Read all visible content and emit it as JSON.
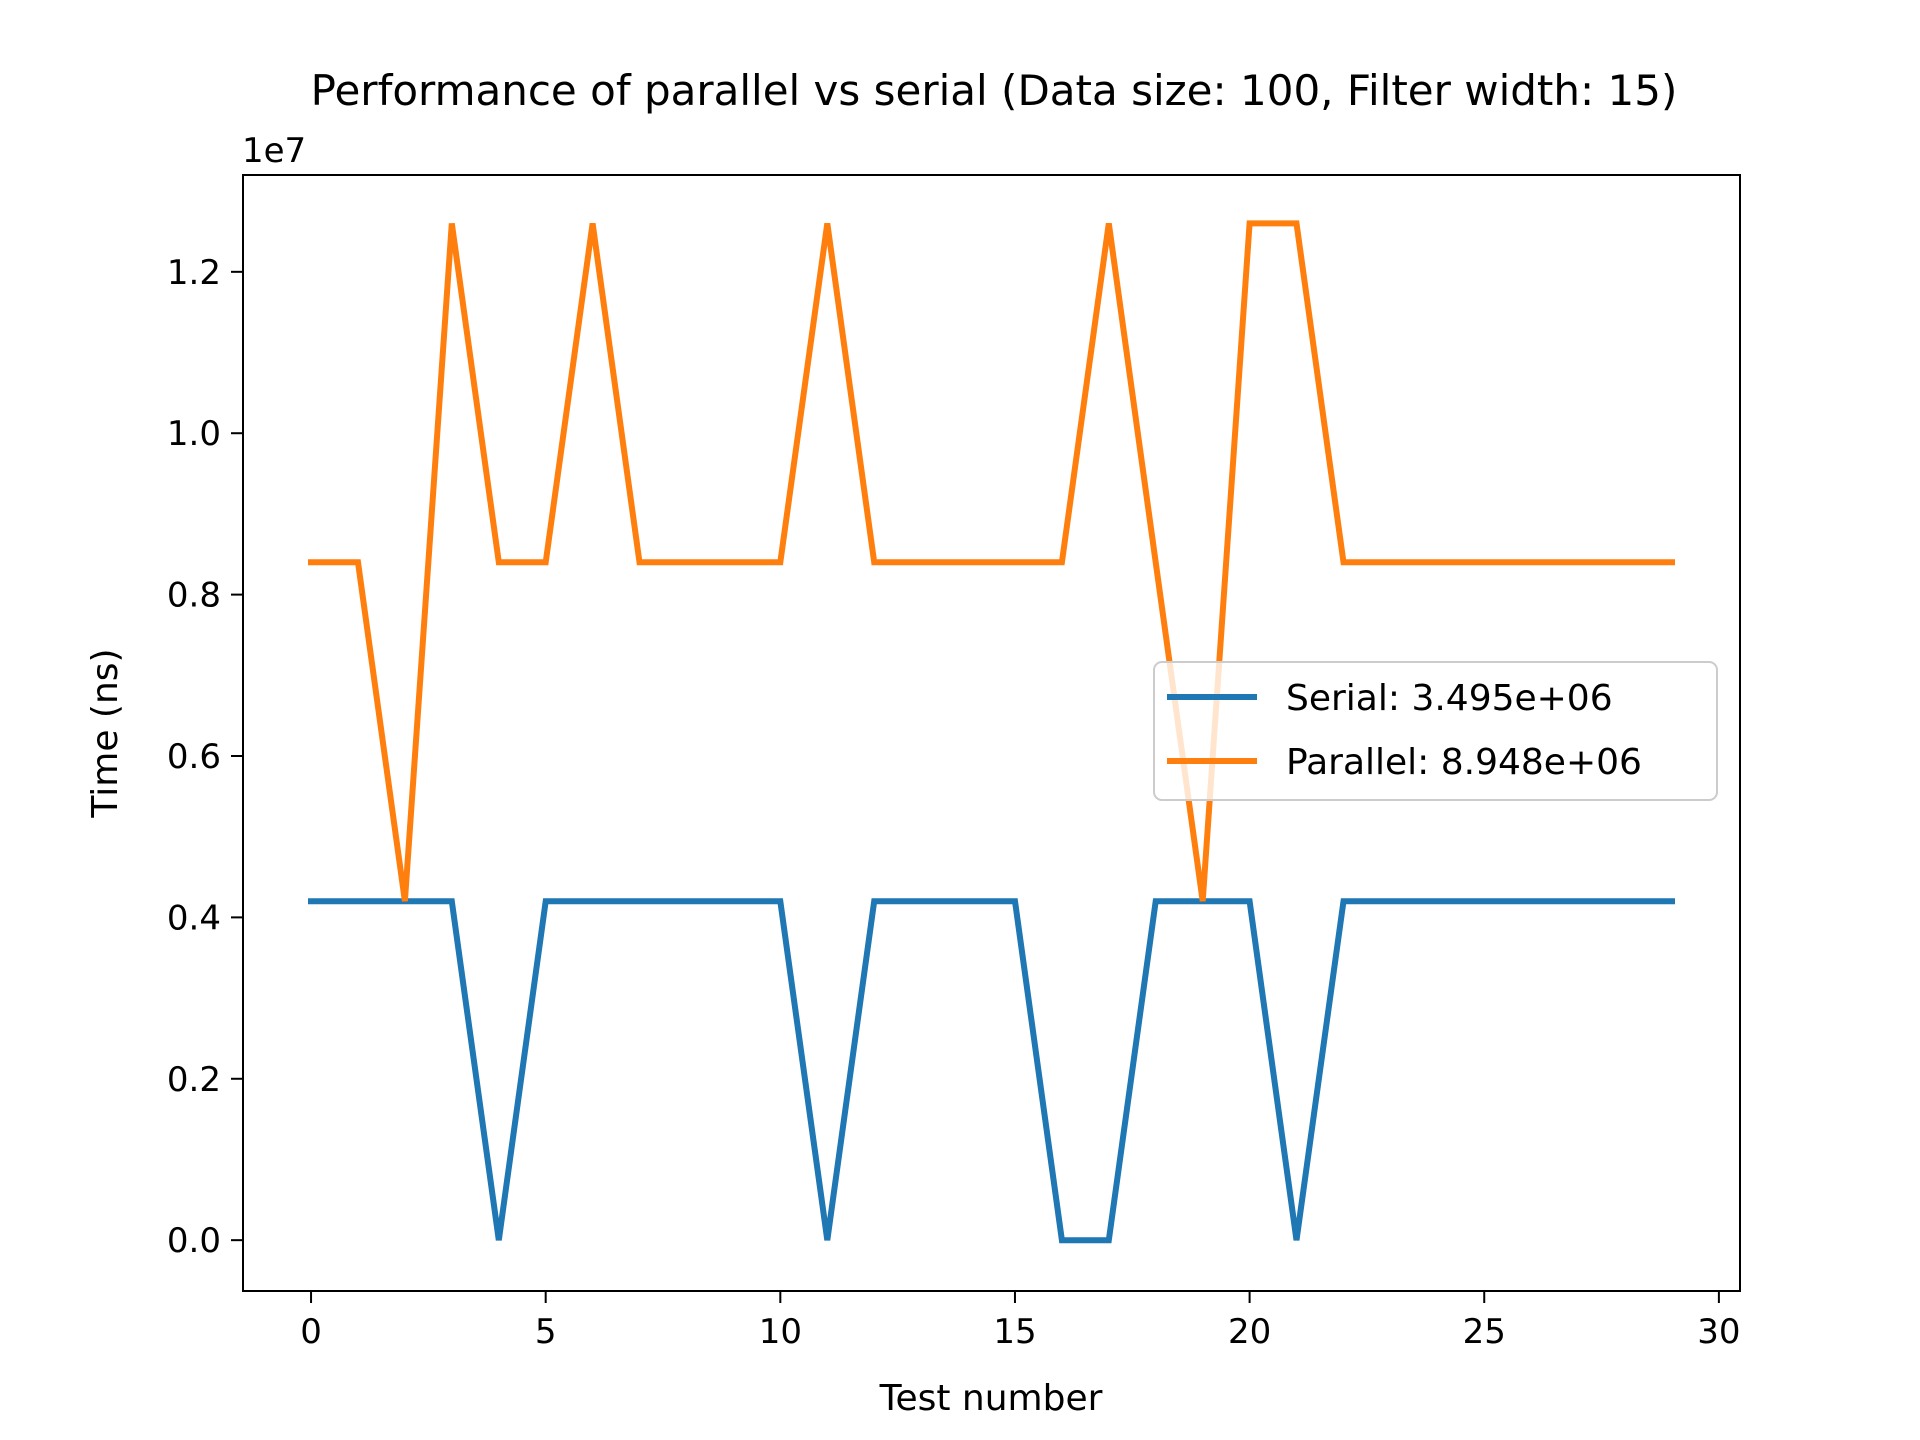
{
  "chart_data": {
    "type": "line",
    "title": "Performance of parallel vs serial (Data size: 100, Filter width: 15)",
    "xlabel": "Test number",
    "ylabel": "Time (ns)",
    "y_scale_label": "1e7",
    "xlim": [
      -1.45,
      30.45
    ],
    "ylim": [
      -0.063,
      1.32
    ],
    "x_ticks": [
      0,
      5,
      10,
      15,
      20,
      25,
      30
    ],
    "x_tick_labels": [
      "0",
      "5",
      "10",
      "15",
      "20",
      "25",
      "30"
    ],
    "y_ticks": [
      0.0,
      0.2,
      0.4,
      0.6,
      0.8,
      1.0,
      1.2
    ],
    "y_tick_labels": [
      "0.0",
      "0.2",
      "0.4",
      "0.6",
      "0.8",
      "1.0",
      "1.2"
    ],
    "grid": false,
    "legend_position": "center-right",
    "x": [
      0,
      1,
      2,
      3,
      4,
      5,
      6,
      7,
      8,
      9,
      10,
      11,
      12,
      13,
      14,
      15,
      16,
      17,
      18,
      19,
      20,
      21,
      22,
      23,
      24,
      25,
      26,
      27,
      28,
      29
    ],
    "series": [
      {
        "name": "Serial",
        "legend_label": "Serial: 3.495e+06",
        "color": "#1f77b4",
        "values": [
          0.42,
          0.42,
          0.42,
          0.42,
          0.0,
          0.42,
          0.42,
          0.42,
          0.42,
          0.42,
          0.42,
          0.0,
          0.42,
          0.42,
          0.42,
          0.42,
          0.0,
          0.0,
          0.42,
          0.42,
          0.42,
          0.0,
          0.42,
          0.42,
          0.42,
          0.42,
          0.42,
          0.42,
          0.42,
          0.42
        ]
      },
      {
        "name": "Parallel",
        "legend_label": "Parallel: 8.948e+06",
        "color": "#ff7f0e",
        "values": [
          0.84,
          0.84,
          0.42,
          1.26,
          0.84,
          0.84,
          1.26,
          0.84,
          0.84,
          0.84,
          0.84,
          1.26,
          0.84,
          0.84,
          0.84,
          0.84,
          0.84,
          1.26,
          0.84,
          0.42,
          1.26,
          1.26,
          0.84,
          0.84,
          0.84,
          0.84,
          0.84,
          0.84,
          0.84,
          0.84
        ]
      }
    ]
  }
}
